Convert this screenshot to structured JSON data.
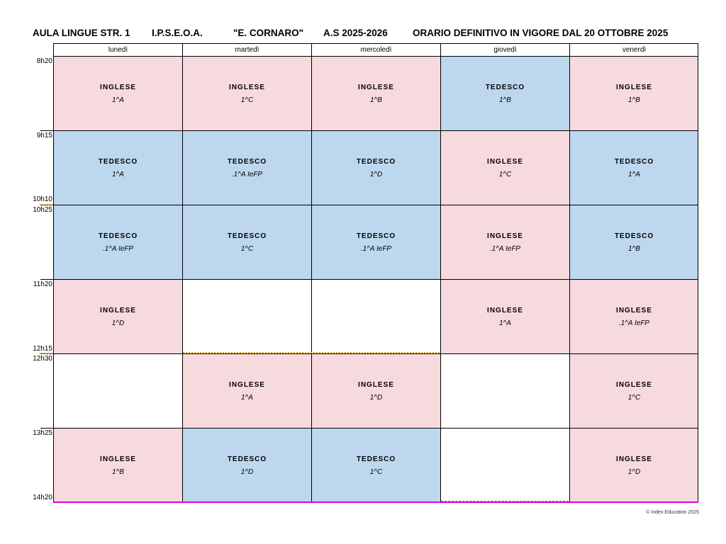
{
  "header": {
    "room": "AULA LINGUE STR. 1",
    "school": "I.P.S.E.O.A.",
    "name": "\"E. CORNARO\"",
    "year": "A.S 2025-2026",
    "title": "ORARIO DEFINITIVO IN VIGORE DAL 20 OTTOBRE 2025"
  },
  "days": [
    "lunedì",
    "martedì",
    "mercoledì",
    "giovedì",
    "venerdì"
  ],
  "times": [
    "8h20",
    "9h15",
    "10h10",
    "10h25",
    "11h20",
    "12h15",
    "12h30",
    "13h25",
    "14h20"
  ],
  "rows": [
    [
      {
        "subject": "INGLESE",
        "class": "1^A"
      },
      {
        "subject": "INGLESE",
        "class": "1^C"
      },
      {
        "subject": "INGLESE",
        "class": "1^B"
      },
      {
        "subject": "TEDESCO",
        "class": "1^B"
      },
      {
        "subject": "INGLESE",
        "class": "1^B"
      }
    ],
    [
      {
        "subject": "TEDESCO",
        "class": "1^A"
      },
      {
        "subject": "TEDESCO",
        "class": ".1^A IeFP"
      },
      {
        "subject": "TEDESCO",
        "class": "1^D"
      },
      {
        "subject": "INGLESE",
        "class": "1^C"
      },
      {
        "subject": "TEDESCO",
        "class": "1^A"
      }
    ],
    [
      {
        "subject": "TEDESCO",
        "class": ".1^A IeFP"
      },
      {
        "subject": "TEDESCO",
        "class": "1^C"
      },
      {
        "subject": "TEDESCO",
        "class": ".1^A IeFP"
      },
      {
        "subject": "INGLESE",
        "class": ".1^A IeFP"
      },
      {
        "subject": "TEDESCO",
        "class": "1^B"
      }
    ],
    [
      {
        "subject": "INGLESE",
        "class": "1^D"
      },
      {
        "subject": "",
        "class": ""
      },
      {
        "subject": "",
        "class": ""
      },
      {
        "subject": "INGLESE",
        "class": "1^A"
      },
      {
        "subject": "INGLESE",
        "class": ".1^A IeFP"
      }
    ],
    [
      {
        "subject": "",
        "class": ""
      },
      {
        "subject": "INGLESE",
        "class": "1^A"
      },
      {
        "subject": "INGLESE",
        "class": "1^D"
      },
      {
        "subject": "",
        "class": ""
      },
      {
        "subject": "INGLESE",
        "class": "1^C"
      }
    ],
    [
      {
        "subject": "INGLESE",
        "class": "1^B"
      },
      {
        "subject": "TEDESCO",
        "class": "1^D"
      },
      {
        "subject": "TEDESCO",
        "class": "1^C"
      },
      {
        "subject": "",
        "class": ""
      },
      {
        "subject": "INGLESE",
        "class": "1^D"
      }
    ]
  ],
  "footer": "© Index Education 2025"
}
